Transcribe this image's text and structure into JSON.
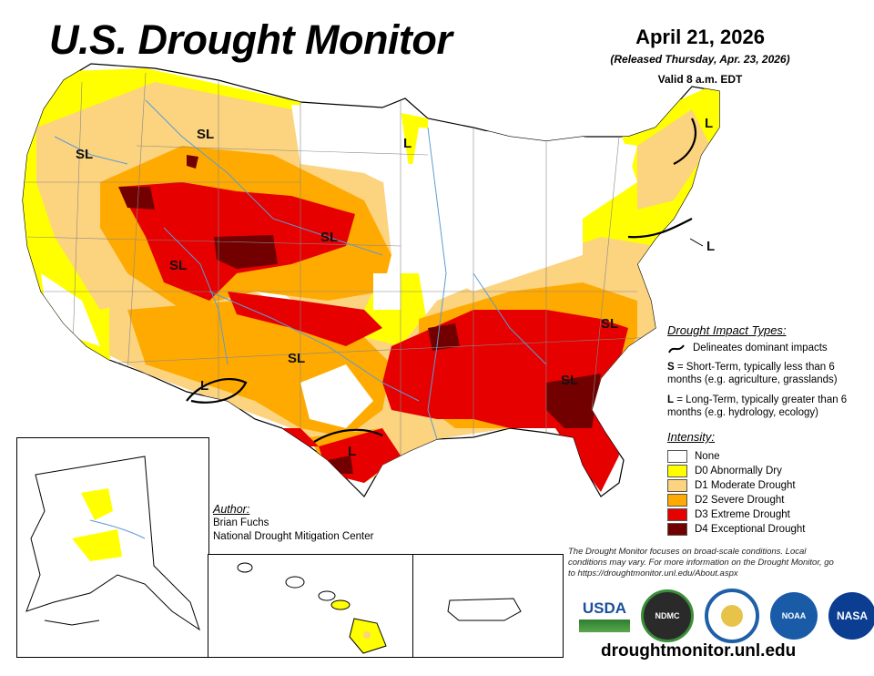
{
  "header": {
    "title": "U.S. Drought Monitor",
    "date": "April 21, 2026",
    "released": "(Released Thursday, Apr. 23, 2026)",
    "valid": "Valid 8 a.m. EDT"
  },
  "impact_types": {
    "heading": "Drought Impact Types:",
    "delineates": "Delineates dominant impacts",
    "short_term_letter": "S",
    "short_term_text": "= Short-Term, typically less than 6 months (e.g. agriculture, grasslands)",
    "long_term_letter": "L",
    "long_term_text": "= Long-Term, typically greater than 6 months (e.g. hydrology, ecology)"
  },
  "intensity": {
    "heading": "Intensity:",
    "levels": [
      {
        "label": "None",
        "color": "#ffffff"
      },
      {
        "label": "D0 Abnormally Dry",
        "color": "#ffff00"
      },
      {
        "label": "D1 Moderate Drought",
        "color": "#fcd37f"
      },
      {
        "label": "D2 Severe Drought",
        "color": "#ffaa00"
      },
      {
        "label": "D3 Extreme Drought",
        "color": "#e60000"
      },
      {
        "label": "D4 Exceptional Drought",
        "color": "#730000"
      }
    ]
  },
  "author": {
    "heading": "Author:",
    "name": "Brian Fuchs",
    "org": "National Drought Mitigation Center"
  },
  "footnote": "The Drought Monitor focuses on broad-scale conditions. Local conditions may vary. For more information on the Drought Monitor, go to https://droughtmonitor.unl.edu/About.aspx",
  "logos": {
    "usda": "USDA",
    "ndmc": "NDMC",
    "noaa": "NOAA",
    "nasa": "NASA"
  },
  "website": "droughtmonitor.unl.edu",
  "map_labels": {
    "sl": "SL",
    "l": "L"
  }
}
